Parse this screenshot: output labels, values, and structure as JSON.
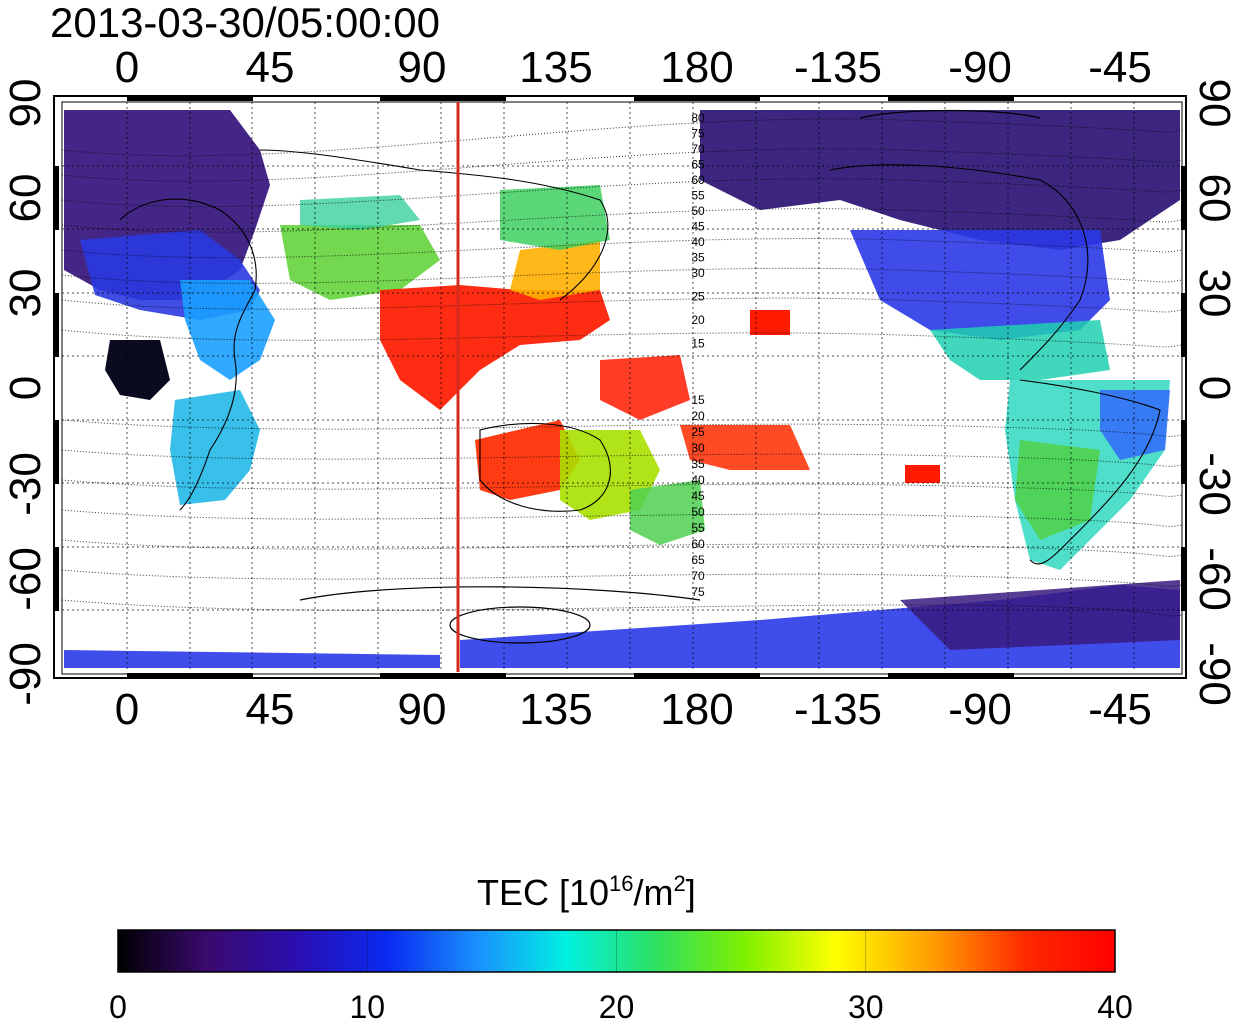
{
  "timestamp": "2013-03-30/05:00:00",
  "map": {
    "lon_ticks_top": [
      "0",
      "45",
      "90",
      "135",
      "180",
      "-135",
      "-90",
      "-45"
    ],
    "lon_ticks_bottom": [
      "0",
      "45",
      "90",
      "135",
      "180",
      "-135",
      "-90",
      "-45"
    ],
    "lat_ticks_left": [
      "90",
      "60",
      "30",
      "0",
      "-30",
      "-60",
      "-90"
    ],
    "lat_ticks_right": [
      "90",
      "60",
      "30",
      "0",
      "-30",
      "-60",
      "-90"
    ],
    "marker_line_color": "#d42a1e",
    "contour_labels_north": [
      "80",
      "75",
      "70",
      "65",
      "60",
      "55",
      "50",
      "45",
      "40",
      "35",
      "30",
      "25",
      "20",
      "15"
    ],
    "contour_labels_south": [
      "15",
      "20",
      "25",
      "30",
      "35",
      "40",
      "45",
      "50",
      "55",
      "60",
      "65",
      "70",
      "75"
    ]
  },
  "colorbar": {
    "title_prefix": "TEC  [10",
    "title_exponent": "16",
    "title_middle": "/m",
    "title_power": "2",
    "title_suffix": "]",
    "tick_labels": [
      "0",
      "10",
      "20",
      "30",
      "40"
    ],
    "min": 0,
    "max": 40,
    "colormap": [
      "#000000",
      "#3a0a6e",
      "#2a0fb0",
      "#0a2af0",
      "#1a90ff",
      "#00f0e0",
      "#2ee060",
      "#80f000",
      "#ffff00",
      "#ff9a00",
      "#ff2a00",
      "#ff0000"
    ]
  }
}
